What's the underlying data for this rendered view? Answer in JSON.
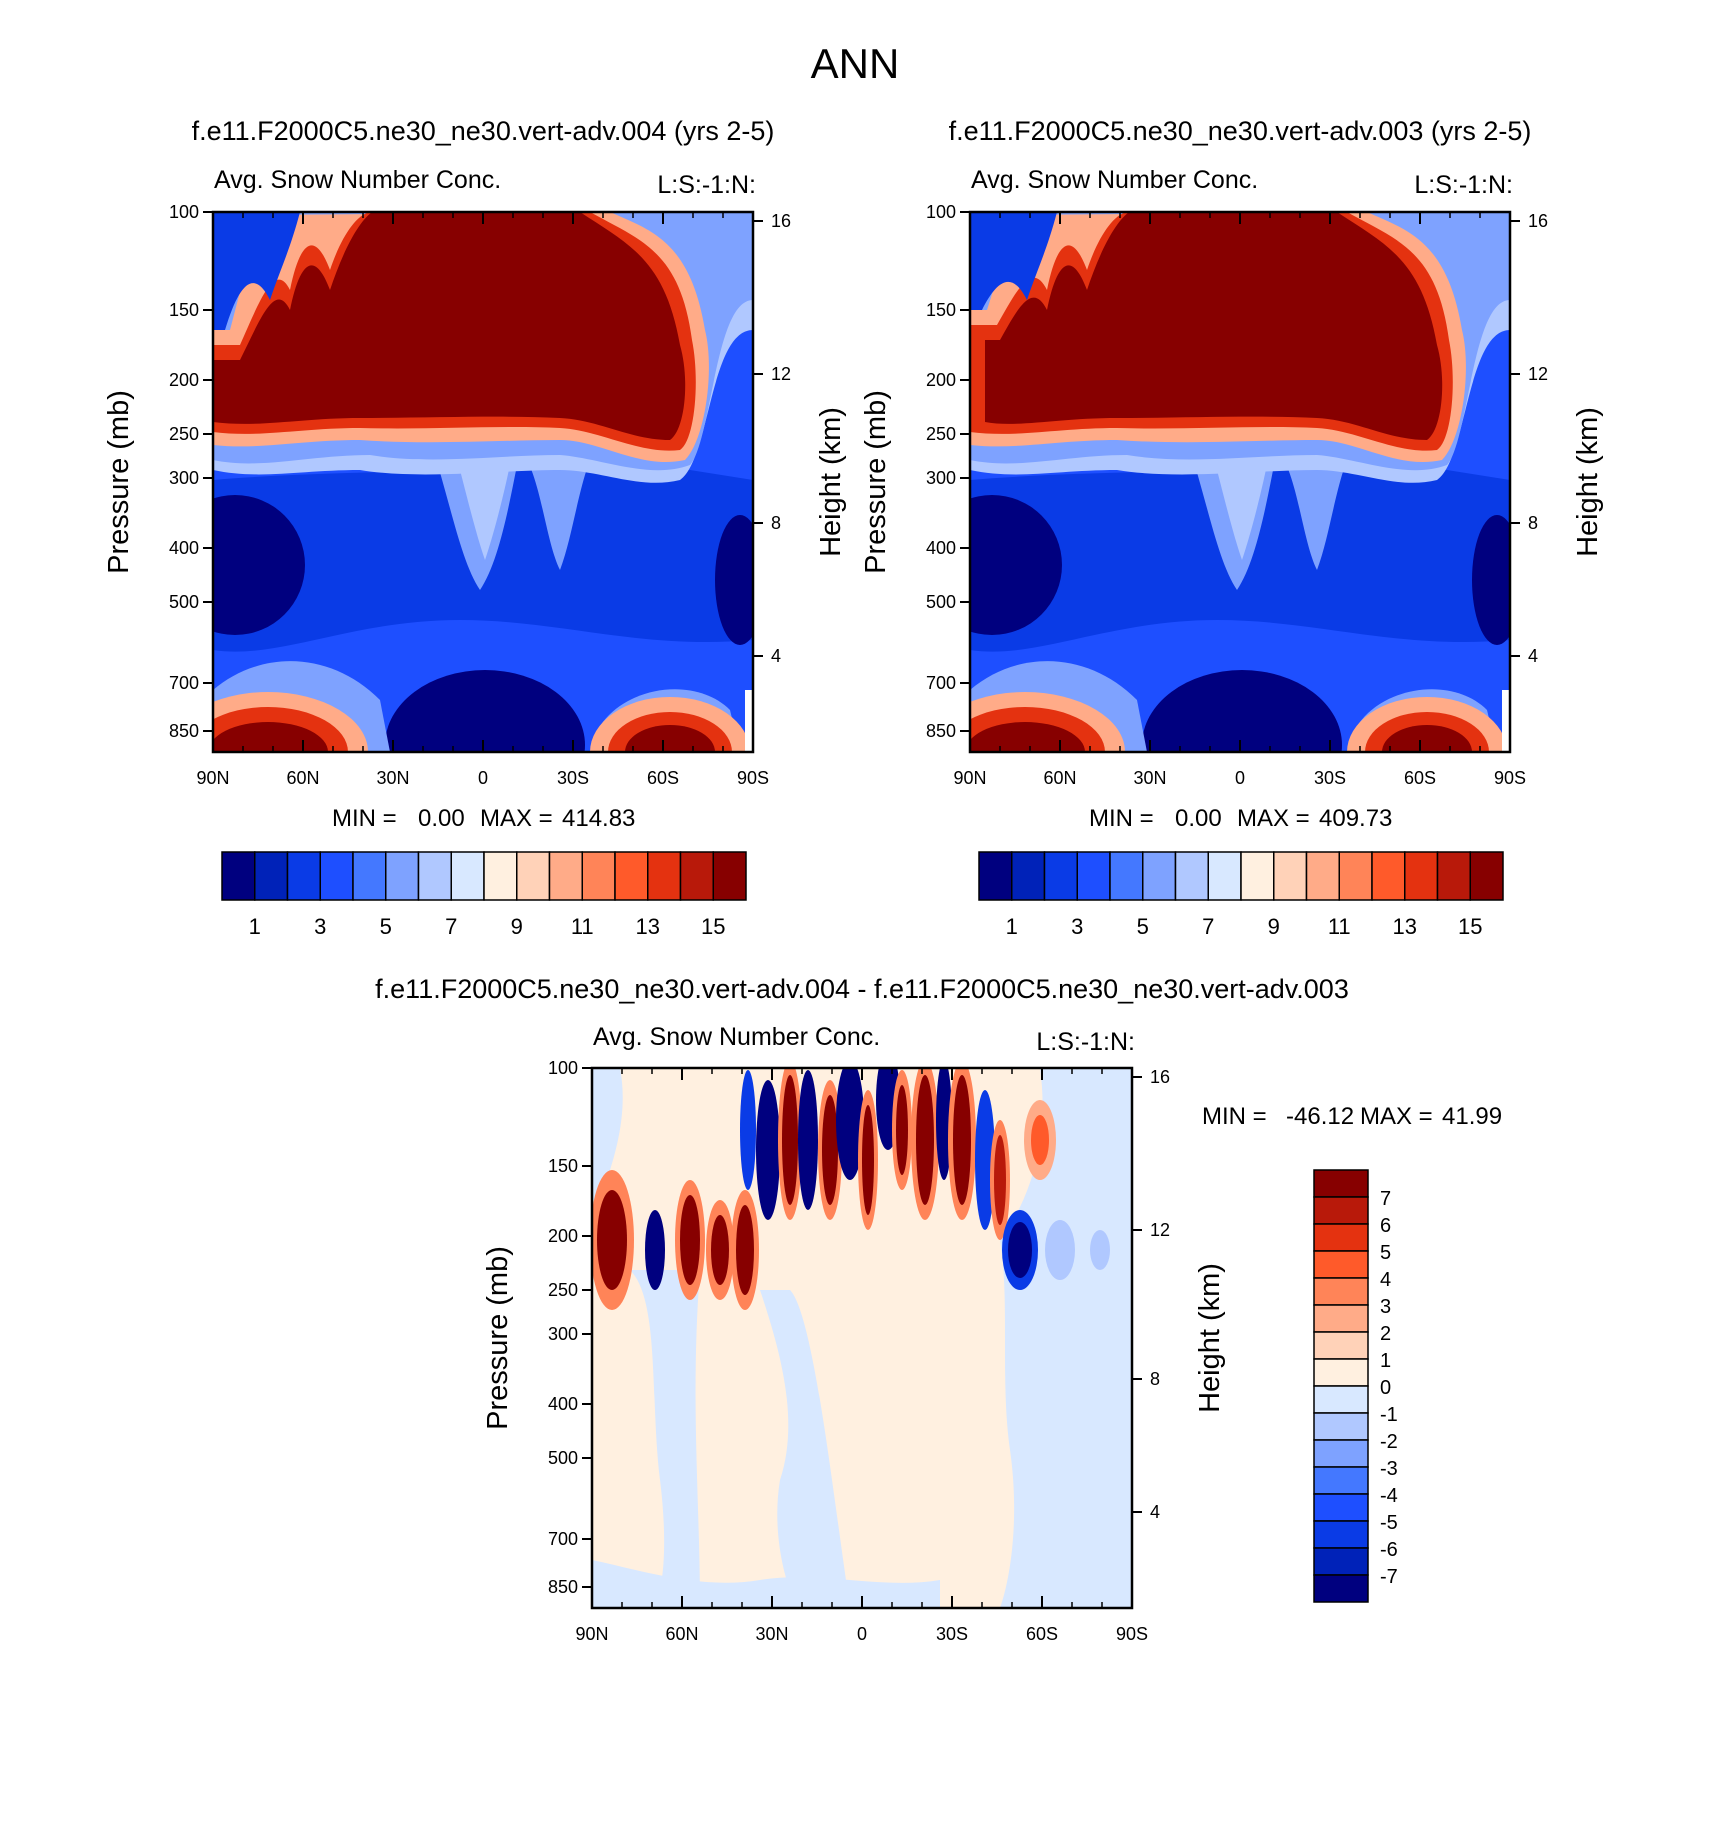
{
  "page_title": "ANN",
  "chart_data": [
    {
      "type": "heatmap",
      "title": "f.e11.F2000C5.ne30_ne30.vert-adv.004 (yrs 2-5)",
      "left_label": "Avg. Snow Number Conc.",
      "right_label": "L:S:-1:N:",
      "ylabel": "Pressure (mb)",
      "y2label": "Height (km)",
      "x_ticks": [
        "90N",
        "60N",
        "30N",
        "0",
        "30S",
        "60S",
        "90S"
      ],
      "y_ticks": [
        "100",
        "150",
        "200",
        "250",
        "300",
        "400",
        "500",
        "700",
        "850"
      ],
      "y2_ticks": [
        "16",
        "12",
        "8",
        "4"
      ],
      "min_label": "MIN =",
      "min_value": "0.00",
      "max_label": "MAX =",
      "max_value": "414.83",
      "colorbar_labels": [
        "1",
        "3",
        "5",
        "7",
        "9",
        "11",
        "13",
        "15"
      ]
    },
    {
      "type": "heatmap",
      "title": "f.e11.F2000C5.ne30_ne30.vert-adv.003 (yrs 2-5)",
      "left_label": "Avg. Snow Number Conc.",
      "right_label": "L:S:-1:N:",
      "ylabel": "Pressure (mb)",
      "y2label": "Height (km)",
      "x_ticks": [
        "90N",
        "60N",
        "30N",
        "0",
        "30S",
        "60S",
        "90S"
      ],
      "y_ticks": [
        "100",
        "150",
        "200",
        "250",
        "300",
        "400",
        "500",
        "700",
        "850"
      ],
      "y2_ticks": [
        "16",
        "12",
        "8",
        "4"
      ],
      "min_label": "MIN =",
      "min_value": "0.00",
      "max_label": "MAX =",
      "max_value": "409.73",
      "colorbar_labels": [
        "1",
        "3",
        "5",
        "7",
        "9",
        "11",
        "13",
        "15"
      ]
    },
    {
      "type": "heatmap",
      "title": "f.e11.F2000C5.ne30_ne30.vert-adv.004 - f.e11.F2000C5.ne30_ne30.vert-adv.003",
      "left_label": "Avg. Snow Number Conc.",
      "right_label": "L:S:-1:N:",
      "ylabel": "Pressure (mb)",
      "y2label": "Height (km)",
      "x_ticks": [
        "90N",
        "60N",
        "30N",
        "0",
        "30S",
        "60S",
        "90S"
      ],
      "y_ticks": [
        "100",
        "150",
        "200",
        "250",
        "300",
        "400",
        "500",
        "700",
        "850"
      ],
      "y2_ticks": [
        "16",
        "12",
        "8",
        "4"
      ],
      "min_label": "MIN =",
      "min_value": "-46.12",
      "max_label": "MAX =",
      "max_value": "41.99",
      "colorbar_labels": [
        "7",
        "6",
        "5",
        "4",
        "3",
        "2",
        "1",
        "0",
        "-1",
        "-2",
        "-3",
        "-4",
        "-5",
        "-6",
        "-7"
      ]
    }
  ],
  "palette_abs": [
    "#00007f",
    "#0022b8",
    "#0a3be6",
    "#1e4fff",
    "#4478ff",
    "#7ea2ff",
    "#b0c8ff",
    "#d8e8ff",
    "#fff0e0",
    "#ffd2b8",
    "#ffab88",
    "#ff8458",
    "#ff5a2a",
    "#e43210",
    "#b8190a",
    "#870000"
  ],
  "palette_diff": [
    "#870000",
    "#b8190a",
    "#e43210",
    "#ff5a2a",
    "#ff8458",
    "#ffab88",
    "#ffd2b8",
    "#fff0e0",
    "#d8e8ff",
    "#b0c8ff",
    "#7ea2ff",
    "#4478ff",
    "#1e4fff",
    "#0a3be6",
    "#0022b8",
    "#00007f"
  ]
}
